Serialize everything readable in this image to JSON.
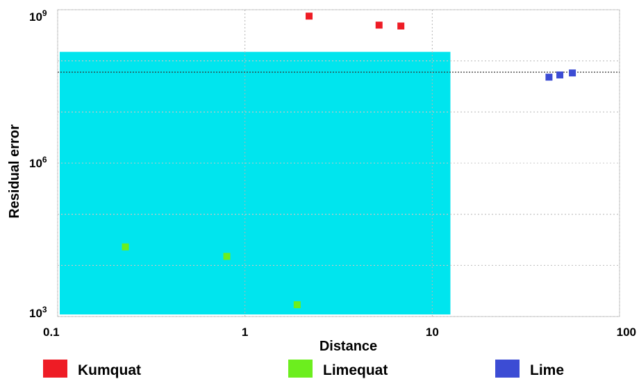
{
  "chart_data": {
    "type": "scatter",
    "title": "",
    "xlabel": "Distance",
    "ylabel": "Residual error",
    "x_scale": "log",
    "y_scale": "log",
    "xlim": [
      0.1,
      100
    ],
    "ylim": [
      1000,
      1000000000
    ],
    "x_ticks": [
      {
        "value": 0.1,
        "label": "0.1"
      },
      {
        "value": 1,
        "label": "1"
      },
      {
        "value": 10,
        "label": "10"
      },
      {
        "value": 100,
        "label": "100"
      }
    ],
    "y_ticks": [
      {
        "value": 1000,
        "base": "10",
        "exp": "3"
      },
      {
        "value": 1000000,
        "base": "10",
        "exp": "6"
      },
      {
        "value": 1000000000,
        "base": "10",
        "exp": "9"
      }
    ],
    "grid": true,
    "highlight_region": {
      "x": [
        0.1,
        12.5
      ],
      "y": [
        1000,
        150000000
      ],
      "color": "#00e5ee"
    },
    "reference_line": {
      "y": 60000000
    },
    "legend_position": "bottom",
    "series": [
      {
        "name": "Kumquat",
        "color": "#ee1c25",
        "points": [
          {
            "x": 2.2,
            "y": 750000000
          },
          {
            "x": 5.2,
            "y": 500000000
          },
          {
            "x": 6.8,
            "y": 480000000
          }
        ]
      },
      {
        "name": "Limequat",
        "color": "#6cee1e",
        "points": [
          {
            "x": 0.23,
            "y": 23000
          },
          {
            "x": 0.8,
            "y": 15000
          },
          {
            "x": 1.9,
            "y": 1700
          }
        ]
      },
      {
        "name": "Lime",
        "color": "#3c4cd4",
        "points": [
          {
            "x": 42,
            "y": 48000000
          },
          {
            "x": 48,
            "y": 53000000
          },
          {
            "x": 56,
            "y": 58000000
          }
        ]
      }
    ]
  }
}
